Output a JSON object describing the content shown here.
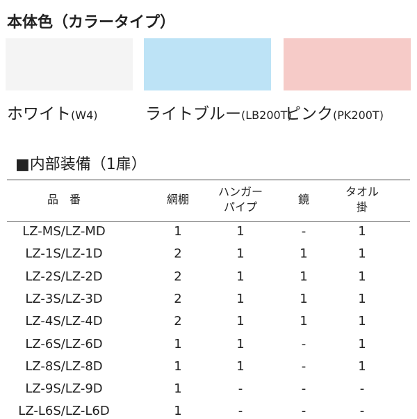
{
  "colors": {
    "title": "本体色（カラータイプ）",
    "swatches": [
      {
        "name": "ホワイト",
        "code": "(W4)",
        "color": "#f4f4f4"
      },
      {
        "name": "ライトブルー",
        "code": "(LB200T)",
        "color": "#bde3f6"
      },
      {
        "name": "ピンク",
        "code": "(PK200T)",
        "color": "#f6cbc8"
      }
    ]
  },
  "equipment": {
    "title": "■内部装備（1扉）",
    "header": [
      [
        "品　番"
      ],
      [
        "網棚"
      ],
      [
        "ハンガー",
        "パイプ"
      ],
      [
        "鏡"
      ],
      [
        "タオル",
        "掛"
      ]
    ],
    "rows": [
      [
        "LZ-MS/LZ-MD",
        "1",
        "1",
        "-",
        "1"
      ],
      [
        "LZ-1S/LZ-1D",
        "2",
        "1",
        "1",
        "1"
      ],
      [
        "LZ-2S/LZ-2D",
        "2",
        "1",
        "1",
        "1"
      ],
      [
        "LZ-3S/LZ-3D",
        "2",
        "1",
        "1",
        "1"
      ],
      [
        "LZ-4S/LZ-4D",
        "2",
        "1",
        "1",
        "1"
      ],
      [
        "LZ-6S/LZ-6D",
        "1",
        "1",
        "-",
        "1"
      ],
      [
        "LZ-8S/LZ-8D",
        "1",
        "1",
        "-",
        "1"
      ],
      [
        "LZ-9S/LZ-9D",
        "1",
        "-",
        "-",
        "-"
      ],
      [
        "LZ-L6S/LZ-L6D",
        "1",
        "-",
        "-",
        "-"
      ]
    ]
  }
}
